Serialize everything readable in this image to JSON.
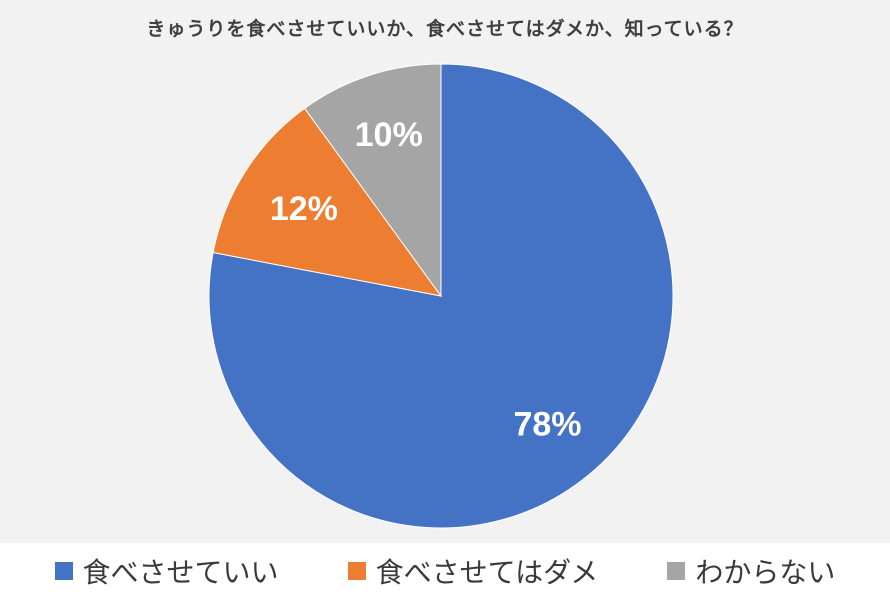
{
  "chart_data": {
    "type": "pie",
    "title": "きゅうりを食べさせていいか、食べさせてはダメか、知っている？",
    "categories": [
      "食べさせていい",
      "食べさせてはダメ",
      "わからない"
    ],
    "values": [
      78,
      12,
      10
    ],
    "data_labels": [
      "78%",
      "12%",
      "10%"
    ],
    "colors": [
      "#4472c4",
      "#ed7d31",
      "#a5a5a5"
    ],
    "legend_position": "bottom",
    "start_angle": "12 o'clock",
    "direction": "clockwise"
  }
}
